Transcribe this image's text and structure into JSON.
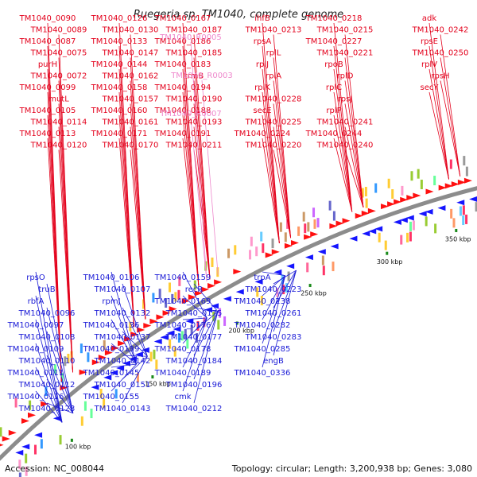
{
  "title": "Ruegeria sp. TM1040, complete genome",
  "footer": {
    "accession": "Accession: NC_008044",
    "summary": "Topology: circular; Length: 3,200,938 bp; Genes: 3,080"
  },
  "colors": {
    "forward_label": "#e3001b",
    "reverse_label": "#1a1ad6",
    "rrna_label": "#ee88cc",
    "backbone": "#8c8c8c",
    "forward_arrow": "#ff1010",
    "reverse_arrow": "#1515ff",
    "tick_green": "#1a8a1a"
  },
  "ticks": [
    "100 kbp",
    "150 kbp",
    "200 kbp",
    "250 kbp",
    "300 kbp",
    "350 kbp"
  ],
  "forward_labels": [
    "TM1040_0090",
    "TM1040_0089",
    "TM1040_0087",
    "TM1040_0075",
    "purH",
    "TM1040_0072",
    "TM1040_0099",
    "mutL",
    "TM1040_0105",
    "TM1040_0114",
    "TM1040_0113",
    "TM1040_0120",
    "TM1040_0126",
    "TM1040_0130",
    "TM1040_0133",
    "TM1040_0147",
    "TM1040_0144",
    "TM1040_0162",
    "TM1040_0158",
    "TM1040_0157",
    "TM1040_0160",
    "TM1040_0161",
    "TM1040_0171",
    "TM1040_0170",
    "TM1040_0167",
    "TM1040_0187",
    "TM1040_0186",
    "TM1040_0185",
    "TM1040_0183",
    "trmB",
    "TM1040_0194",
    "TM1040_0190",
    "TM1040_0188",
    "TM1040_0193",
    "TM1040_0191",
    "TM1040_0211",
    "ihfB",
    "TM1040_0213",
    "rpsA",
    "rplL",
    "rplJ",
    "rplA",
    "rplK",
    "TM1040_0228",
    "secE",
    "TM1040_0225",
    "TM1040_0224",
    "TM1040_0220",
    "TM1040_0218",
    "TM1040_0215",
    "TM1040_0227",
    "TM1040_0221",
    "rpoB",
    "rplD",
    "rplC",
    "rpsJ",
    "rplP",
    "TM1040_0241",
    "TM1040_0244",
    "TM1040_0240",
    "adk",
    "TM1040_0242",
    "rpsE",
    "TM1040_0250",
    "rplV",
    "rpsH",
    "secY"
  ],
  "rrna_labels": [
    "TM1040_R0005",
    "TM1040_R0003",
    "TM1040_R0007"
  ],
  "reverse_labels": [
    "rpsO",
    "truB",
    "rbfA",
    "TM1040_0096",
    "TM1040_0097",
    "TM1040_0108",
    "TM1040_0109",
    "TM1040_0110",
    "TM1040_0111",
    "TM1040_0112",
    "TM1040_0116",
    "TM1040_0123",
    "TM1040_0106",
    "TM1040_0107",
    "rpmJ",
    "TM1040_0132",
    "TM1040_0136",
    "TM1040_0137",
    "TM1040_0139",
    "TM1040_0142",
    "TM1040_0145",
    "TM1040_0151",
    "TM1040_0155",
    "TM1040_0143",
    "TM1040_0159",
    "recR",
    "TM1040_0169",
    "TM1040_0175",
    "TM1040_0176",
    "TM1040_0177",
    "TM1040_0178",
    "TM1040_0184",
    "TM1040_0189",
    "TM1040_0196",
    "cmk",
    "TM1040_0212",
    "trpA",
    "TM1040_0223",
    "TM1040_0238",
    "TM1040_0261",
    "TM1040_0282",
    "TM1040_0283",
    "TM1040_0285",
    "engB",
    "TM1040_0336"
  ]
}
